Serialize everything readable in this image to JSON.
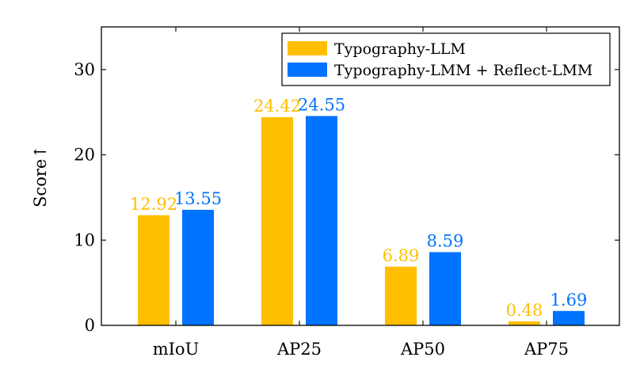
{
  "chart_data": {
    "type": "bar",
    "title": "",
    "xlabel": "",
    "ylabel": "Score↑",
    "categories": [
      "mIoU",
      "AP25",
      "AP50",
      "AP75"
    ],
    "series": [
      {
        "name": "Typography-LLM",
        "color": "#FFBF00",
        "values": [
          12.92,
          24.42,
          6.89,
          0.48
        ]
      },
      {
        "name": "Typography-LMM + Reflect-LMM",
        "color": "#0073FF",
        "values": [
          13.55,
          24.55,
          8.59,
          1.69
        ]
      }
    ],
    "data_labels": [
      [
        "12.92",
        "24.42",
        "6.89",
        "0.48"
      ],
      [
        "13.55",
        "24.55",
        "8.59",
        "1.69"
      ]
    ],
    "ylim": [
      0,
      35
    ],
    "yticks": [
      0,
      10,
      20,
      30
    ],
    "ytick_labels": [
      "0",
      "10",
      "20",
      "30"
    ],
    "grid": false,
    "legend_position": "top-right"
  }
}
